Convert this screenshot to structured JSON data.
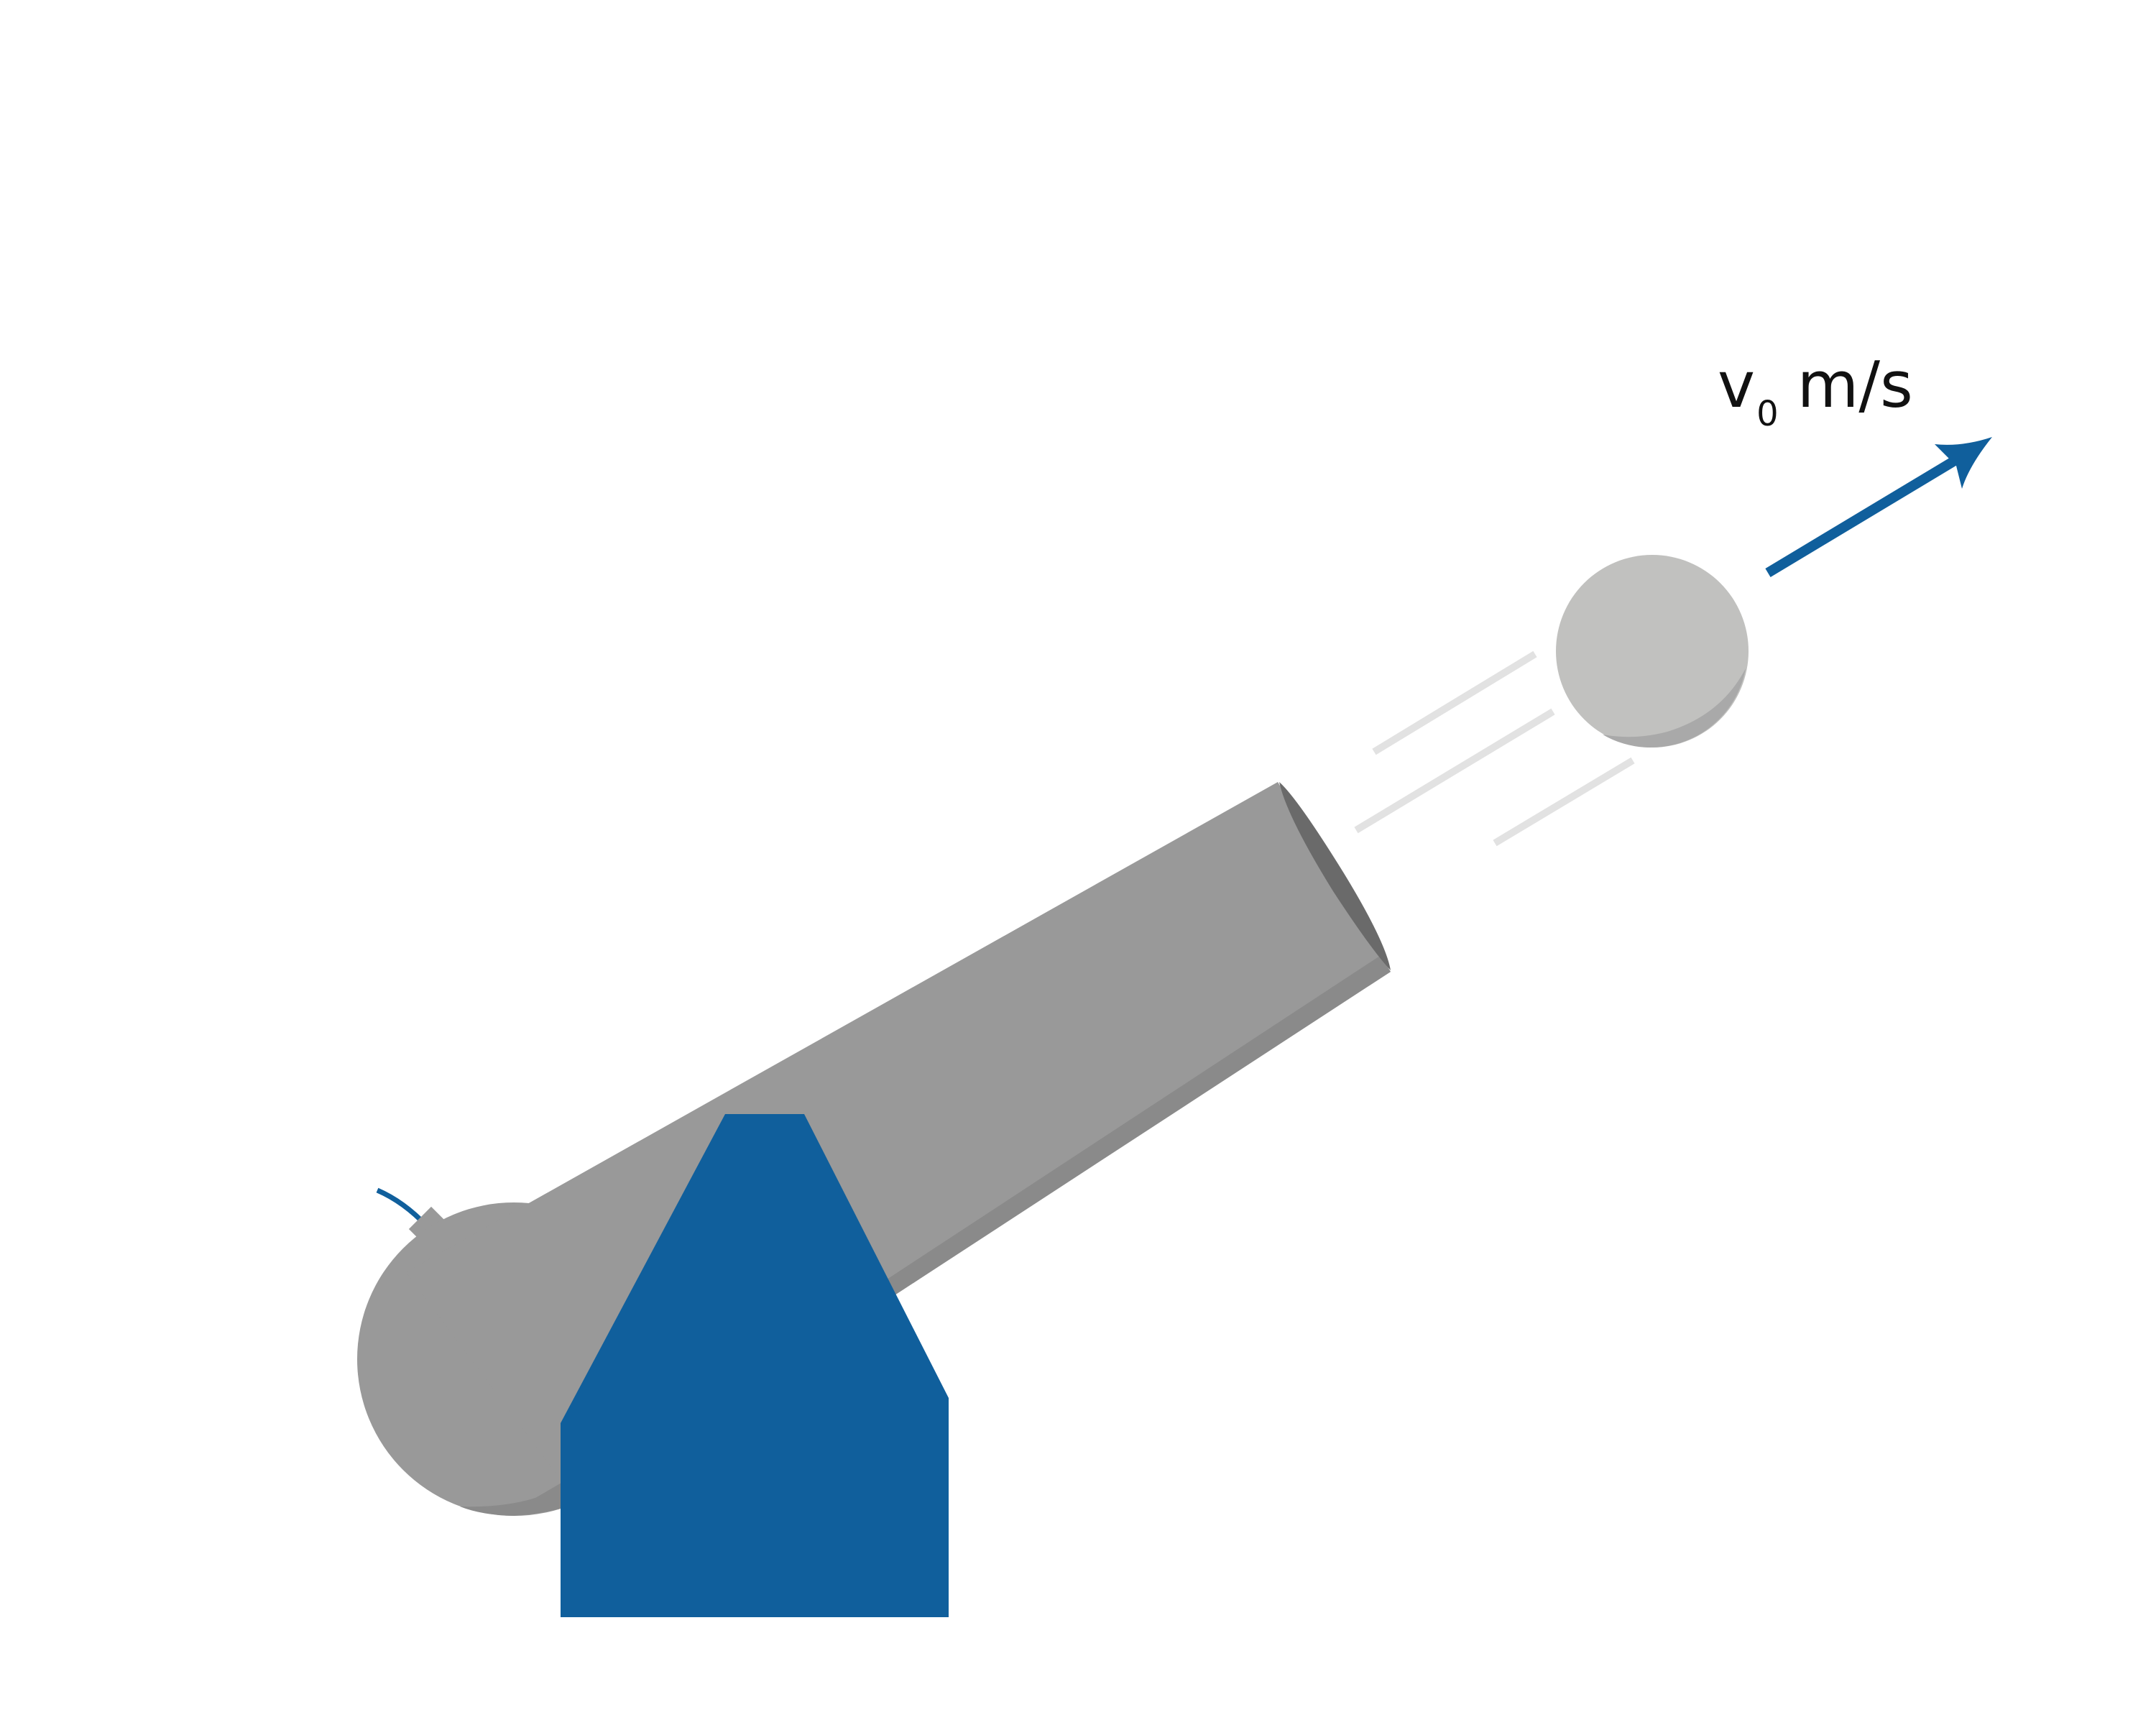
{
  "diagram": {
    "velocity_label": {
      "symbol": "v",
      "subscript": "0",
      "unit": "m/s"
    },
    "colors": {
      "barrel": "#999999",
      "barrel_shadow": "#8a8a8a",
      "barrel_shadow_dark": "#858585",
      "muzzle_rim": "#6a6a6a",
      "carriage": "#105f9c",
      "fuse": "#105f9c",
      "cannonball": "#c1c1bf",
      "cannonball_shadow": "#a9a9a9",
      "motion_lines": "#e2e2e2",
      "velocity_arrow": "#105f9c",
      "label_text": "#111111"
    }
  }
}
